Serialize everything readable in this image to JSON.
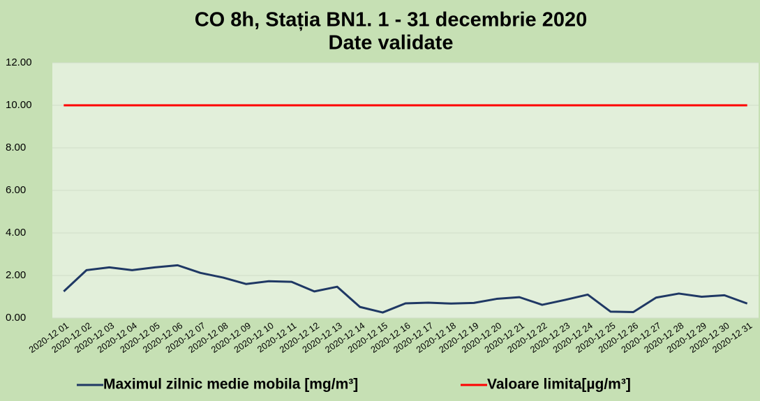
{
  "chart_data": {
    "type": "line",
    "title": [
      "CO 8h, Stația BN1. 1 - 31 decembrie 2020",
      "Date validate"
    ],
    "categories": [
      "2020-12 01",
      "2020-12 02",
      "2020-12 03",
      "2020-12 04",
      "2020-12 05",
      "2020-12 06",
      "2020-12 07",
      "2020-12 08",
      "2020-12 09",
      "2020-12 10",
      "2020-12 11",
      "2020-12 12",
      "2020-12 13",
      "2020-12 14",
      "2020-12 15",
      "2020-12 16",
      "2020-12 17",
      "2020-12 18",
      "2020-12 19",
      "2020-12 20",
      "2020-12 21",
      "2020-12 22",
      "2020-12 23",
      "2020-12 24",
      "2020-12 25",
      "2020-12 26",
      "2020-12 27",
      "2020-12 28",
      "2020-12 29",
      "2020-12 30",
      "2020-12 31"
    ],
    "series": [
      {
        "name": "Maximul zilnic medie mobila [mg/m³]",
        "color": "#1f3864",
        "values": [
          1.25,
          2.25,
          2.38,
          2.25,
          2.38,
          2.48,
          2.12,
          1.9,
          1.6,
          1.73,
          1.7,
          1.25,
          1.47,
          0.52,
          0.26,
          0.69,
          0.72,
          0.68,
          0.71,
          0.9,
          0.98,
          0.62,
          0.85,
          1.1,
          0.3,
          0.28,
          0.96,
          1.15,
          1.0,
          1.07,
          0.68
        ]
      },
      {
        "name": "Valoare limita[µg/m³]",
        "color": "#ff0000",
        "values": [
          10,
          10,
          10,
          10,
          10,
          10,
          10,
          10,
          10,
          10,
          10,
          10,
          10,
          10,
          10,
          10,
          10,
          10,
          10,
          10,
          10,
          10,
          10,
          10,
          10,
          10,
          10,
          10,
          10,
          10,
          10
        ]
      }
    ],
    "ylim": [
      0,
      12
    ],
    "yticks": [
      {
        "value": 0,
        "label": "0.00"
      },
      {
        "value": 2,
        "label": "2.00"
      },
      {
        "value": 4,
        "label": "4.00"
      },
      {
        "value": 6,
        "label": "6.00"
      },
      {
        "value": 8,
        "label": "8.00"
      },
      {
        "value": 10,
        "label": "10.00"
      },
      {
        "value": 12,
        "label": "12.00"
      }
    ],
    "grid": true,
    "legend": "bottom"
  }
}
